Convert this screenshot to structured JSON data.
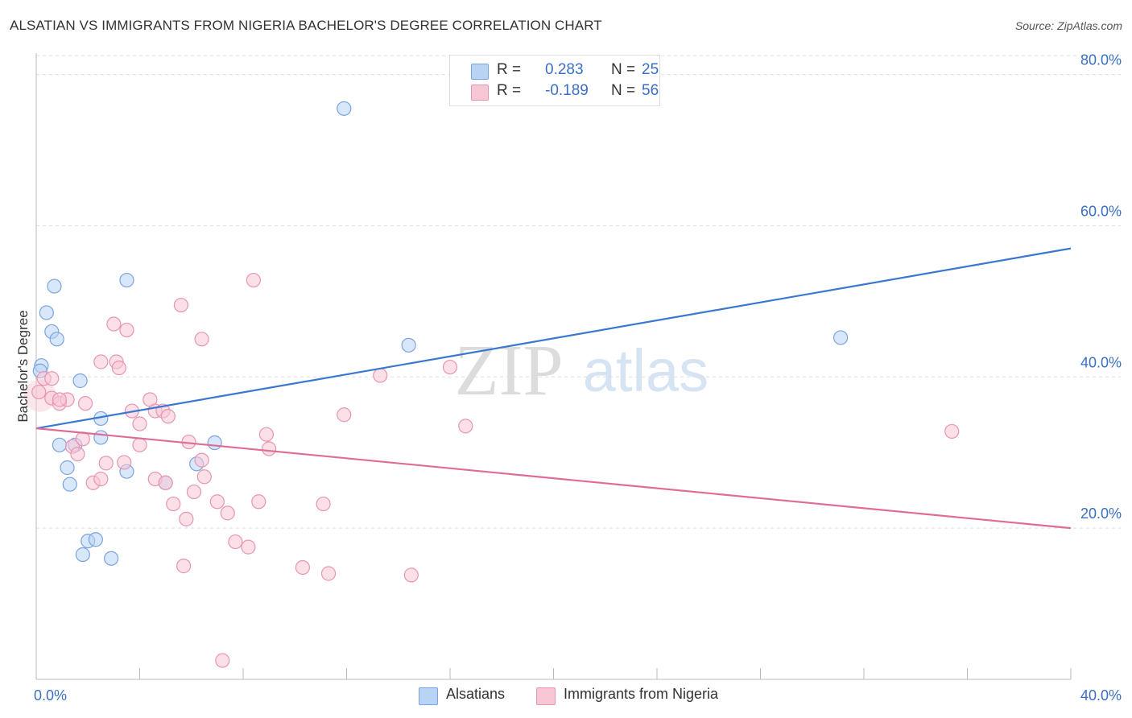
{
  "title": "ALSATIAN VS IMMIGRANTS FROM NIGERIA BACHELOR'S DEGREE CORRELATION CHART",
  "source": "Source: ZipAtlas.com",
  "watermark": {
    "zip": "ZIP",
    "atlas": "atlas"
  },
  "legend_box": {
    "rows": [
      {
        "r_label": "R =",
        "r_value": "0.283",
        "n_label": "N =",
        "n_value": "25"
      },
      {
        "r_label": "R =",
        "r_value": "-0.189",
        "n_label": "N =",
        "n_value": "56"
      }
    ]
  },
  "bottom_legend": [
    "Alsatians",
    "Immigrants from Nigeria"
  ],
  "colors": {
    "blue_fill": "#b9d3f5",
    "blue_stroke": "#7aa4de",
    "blue_line": "#3a78d0",
    "pink_fill": "#f7c7d5",
    "pink_stroke": "#e895b0",
    "pink_line": "#e06b96",
    "axis_text": "#3a6fc4",
    "grid": "#dddddd"
  },
  "chart_data": {
    "type": "scatter",
    "title": "ALSATIAN VS IMMIGRANTS FROM NIGERIA BACHELOR'S DEGREE CORRELATION CHART",
    "xlabel": "",
    "ylabel": "Bachelor's Degree",
    "xlim": [
      0,
      40
    ],
    "ylim": [
      0,
      84
    ],
    "x_tick_labels": [
      {
        "value": 0,
        "label": "0.0%"
      },
      {
        "value": 40,
        "label": "40.0%"
      }
    ],
    "y_tick_labels": [
      {
        "value": 20,
        "label": "20.0%"
      },
      {
        "value": 40,
        "label": "40.0%"
      },
      {
        "value": 60,
        "label": "60.0%"
      },
      {
        "value": 80,
        "label": "80.0%"
      }
    ],
    "series": [
      {
        "name": "Alsatians",
        "r": 0.283,
        "n": 25,
        "trend": [
          {
            "x": 0,
            "y": 33.2
          },
          {
            "x": 40,
            "y": 57.0
          }
        ],
        "points": [
          [
            0.2,
            41.5
          ],
          [
            0.4,
            48.5
          ],
          [
            0.7,
            52.0
          ],
          [
            0.6,
            46.0
          ],
          [
            0.8,
            45.0
          ],
          [
            1.7,
            39.5
          ],
          [
            0.9,
            31.0
          ],
          [
            1.5,
            31.0
          ],
          [
            2.5,
            34.5
          ],
          [
            2.5,
            32.0
          ],
          [
            1.2,
            28.0
          ],
          [
            1.3,
            25.8
          ],
          [
            3.5,
            27.5
          ],
          [
            3.5,
            52.8
          ],
          [
            5.0,
            26.0
          ],
          [
            6.2,
            28.5
          ],
          [
            6.9,
            31.3
          ],
          [
            2.0,
            18.3
          ],
          [
            2.3,
            18.5
          ],
          [
            1.8,
            16.5
          ],
          [
            2.9,
            16.0
          ],
          [
            11.9,
            75.5
          ],
          [
            14.4,
            44.2
          ],
          [
            31.1,
            45.2
          ],
          [
            0.15,
            40.8
          ]
        ]
      },
      {
        "name": "Immigrants from Nigeria",
        "r": -0.189,
        "n": 56,
        "trend": [
          {
            "x": 0,
            "y": 33.2
          },
          {
            "x": 40,
            "y": 20.0
          }
        ],
        "points": [
          [
            0.1,
            38.0
          ],
          [
            0.3,
            39.8
          ],
          [
            0.6,
            37.2
          ],
          [
            0.9,
            36.5
          ],
          [
            1.2,
            37.0
          ],
          [
            1.9,
            36.5
          ],
          [
            1.4,
            30.8
          ],
          [
            1.6,
            29.8
          ],
          [
            1.8,
            31.8
          ],
          [
            2.2,
            26.0
          ],
          [
            2.5,
            26.5
          ],
          [
            2.7,
            28.6
          ],
          [
            3.0,
            47.0
          ],
          [
            3.5,
            46.2
          ],
          [
            3.1,
            42.0
          ],
          [
            3.2,
            41.2
          ],
          [
            2.5,
            42.0
          ],
          [
            3.7,
            35.5
          ],
          [
            4.0,
            33.8
          ],
          [
            4.0,
            31.0
          ],
          [
            4.4,
            37.0
          ],
          [
            4.6,
            35.5
          ],
          [
            4.9,
            35.5
          ],
          [
            5.1,
            34.8
          ],
          [
            3.4,
            28.7
          ],
          [
            4.6,
            26.5
          ],
          [
            5.0,
            26.0
          ],
          [
            5.3,
            23.2
          ],
          [
            5.6,
            49.5
          ],
          [
            6.4,
            45.0
          ],
          [
            5.9,
            31.4
          ],
          [
            6.1,
            24.8
          ],
          [
            5.8,
            21.2
          ],
          [
            6.5,
            26.8
          ],
          [
            6.4,
            29.0
          ],
          [
            7.0,
            23.5
          ],
          [
            7.4,
            22.0
          ],
          [
            7.7,
            18.2
          ],
          [
            8.2,
            17.5
          ],
          [
            8.4,
            52.8
          ],
          [
            8.6,
            23.5
          ],
          [
            8.9,
            32.4
          ],
          [
            9.0,
            30.5
          ],
          [
            5.7,
            15.0
          ],
          [
            10.3,
            14.8
          ],
          [
            11.1,
            23.2
          ],
          [
            11.3,
            14.0
          ],
          [
            11.9,
            35.0
          ],
          [
            13.3,
            40.2
          ],
          [
            14.5,
            13.8
          ],
          [
            16.0,
            41.3
          ],
          [
            16.6,
            33.5
          ],
          [
            35.4,
            32.8
          ],
          [
            7.2,
            2.5
          ],
          [
            0.6,
            39.8
          ],
          [
            0.9,
            37.0
          ]
        ]
      }
    ]
  }
}
